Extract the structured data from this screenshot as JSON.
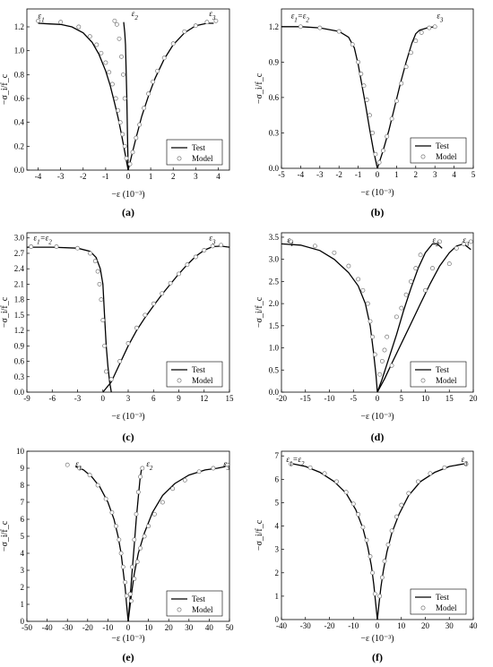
{
  "figure": {
    "legend_test": "Test",
    "legend_model": "Model",
    "ylabel": "−σ_i/f_c",
    "xlabel": "−ε (10⁻³)"
  },
  "chart_data": [
    {
      "type": "line",
      "panel_label": "(a)",
      "xlim": [
        -4.5,
        4.5
      ],
      "ylim": [
        0,
        1.35
      ],
      "xticks": [
        -4,
        -3,
        -2,
        -1,
        0,
        1,
        2,
        3,
        4
      ],
      "yticks": [
        0.0,
        0.2,
        0.4,
        0.6,
        0.8,
        1.0,
        1.2
      ],
      "ytick_decimals": 1,
      "legend_position": "lower-right",
      "annotations": [
        {
          "text": "ε1",
          "x": -4.0,
          "y": 1.27
        },
        {
          "text": "ε2",
          "x": 0.15,
          "y": 1.29
        },
        {
          "text": "ε3",
          "x": 3.6,
          "y": 1.29
        }
      ],
      "series": [
        {
          "name": "Test",
          "style": "line",
          "x": [
            -4.0,
            -3.5,
            -3.0,
            -2.5,
            -2.0,
            -1.6,
            -1.3,
            -1.0,
            -0.8,
            -0.6,
            -0.45,
            -0.3,
            -0.2,
            -0.1,
            0.0
          ],
          "y": [
            1.23,
            1.225,
            1.22,
            1.2,
            1.15,
            1.07,
            0.97,
            0.83,
            0.71,
            0.56,
            0.44,
            0.3,
            0.2,
            0.1,
            0.0
          ]
        },
        {
          "name": "Test",
          "style": "line",
          "x": [
            0.0,
            -0.03,
            -0.06,
            -0.1,
            -0.12,
            -0.15,
            -0.2
          ],
          "y": [
            0.0,
            0.3,
            0.6,
            0.9,
            1.05,
            1.15,
            1.24
          ]
        },
        {
          "name": "Test",
          "style": "line",
          "x": [
            0.0,
            0.15,
            0.35,
            0.6,
            0.9,
            1.2,
            1.6,
            2.0,
            2.5,
            3.0,
            3.5,
            3.8
          ],
          "y": [
            0.0,
            0.12,
            0.27,
            0.45,
            0.62,
            0.77,
            0.93,
            1.05,
            1.15,
            1.21,
            1.23,
            1.23
          ]
        },
        {
          "name": "Model",
          "style": "marker",
          "x": [
            -4.0,
            -3.0,
            -2.2,
            -1.7,
            -1.4,
            -1.2,
            -1.0,
            -0.85,
            -0.7,
            -0.55,
            -0.45,
            -0.35,
            -0.25,
            -0.15,
            -0.08,
            -0.6,
            -0.5,
            -0.4,
            -0.3,
            -0.22,
            -0.15,
            0.08,
            0.2,
            0.35,
            0.5,
            0.7,
            0.9,
            1.1,
            1.3,
            1.6,
            2.0,
            2.5,
            3.0,
            3.5,
            3.9
          ],
          "y": [
            1.25,
            1.24,
            1.2,
            1.12,
            1.05,
            0.98,
            0.9,
            0.82,
            0.72,
            0.6,
            0.5,
            0.4,
            0.3,
            0.2,
            0.1,
            1.25,
            1.22,
            1.1,
            0.95,
            0.8,
            0.6,
            0.05,
            0.15,
            0.27,
            0.38,
            0.52,
            0.64,
            0.74,
            0.83,
            0.94,
            1.06,
            1.16,
            1.21,
            1.24,
            1.25
          ]
        }
      ]
    },
    {
      "type": "line",
      "panel_label": "(b)",
      "xlim": [
        -5,
        5
      ],
      "ylim": [
        0,
        1.35
      ],
      "xticks": [
        -5,
        -4,
        -3,
        -2,
        -1,
        0,
        1,
        2,
        3,
        4,
        5
      ],
      "yticks": [
        0.0,
        0.3,
        0.6,
        0.9,
        1.2
      ],
      "ytick_decimals": 1,
      "legend_position": "lower-right",
      "annotations": [
        {
          "text": "ε1=ε2",
          "x": -4.5,
          "y": 1.27
        },
        {
          "text": "ε3",
          "x": 3.1,
          "y": 1.27
        }
      ],
      "series": [
        {
          "name": "Test",
          "style": "line",
          "x": [
            -5.0,
            -4.0,
            -3.0,
            -2.0,
            -1.5,
            -1.2,
            -1.0,
            -0.8,
            -0.6,
            -0.4,
            -0.2,
            0.0
          ],
          "y": [
            1.2,
            1.2,
            1.19,
            1.16,
            1.11,
            1.02,
            0.88,
            0.7,
            0.52,
            0.33,
            0.15,
            0.0
          ]
        },
        {
          "name": "Test",
          "style": "line",
          "x": [
            0.0,
            0.3,
            0.6,
            0.9,
            1.2,
            1.5,
            1.8,
            2.0,
            2.2,
            2.6,
            3.0
          ],
          "y": [
            0.0,
            0.15,
            0.32,
            0.52,
            0.72,
            0.9,
            1.06,
            1.14,
            1.17,
            1.19,
            1.2
          ]
        },
        {
          "name": "Model",
          "style": "marker",
          "x": [
            -4.0,
            -3.0,
            -2.0,
            -1.3,
            -1.0,
            -0.85,
            -0.7,
            -0.55,
            -0.4,
            -0.25,
            -0.1,
            0.1,
            0.3,
            0.5,
            0.75,
            1.0,
            1.25,
            1.5,
            1.75,
            2.0,
            2.3,
            2.7,
            3.0
          ],
          "y": [
            1.2,
            1.19,
            1.16,
            1.05,
            0.9,
            0.8,
            0.7,
            0.58,
            0.45,
            0.3,
            0.12,
            0.05,
            0.15,
            0.27,
            0.42,
            0.57,
            0.72,
            0.86,
            0.98,
            1.08,
            1.15,
            1.19,
            1.2
          ]
        }
      ]
    },
    {
      "type": "line",
      "panel_label": "(c)",
      "xlim": [
        -9,
        15
      ],
      "ylim": [
        0,
        3.1
      ],
      "xticks": [
        -9,
        -6,
        -3,
        0,
        3,
        6,
        9,
        12,
        15
      ],
      "yticks": [
        0.0,
        0.3,
        0.6,
        0.9,
        1.2,
        1.5,
        1.8,
        2.1,
        2.4,
        2.7,
        3.0
      ],
      "ytick_decimals": 1,
      "legend_position": "lower-right",
      "annotations": [
        {
          "text": "ε1=ε2",
          "x": -8.2,
          "y": 2.95
        },
        {
          "text": "ε3",
          "x": 12.6,
          "y": 2.95
        }
      ],
      "series": [
        {
          "name": "Test",
          "style": "line",
          "x": [
            -9.0,
            -6.0,
            -3.0,
            -1.5,
            -0.8,
            -0.3,
            0.0,
            0.2,
            0.4,
            0.6,
            0.8,
            1.0
          ],
          "y": [
            2.82,
            2.82,
            2.8,
            2.74,
            2.62,
            2.4,
            2.1,
            1.5,
            0.9,
            0.5,
            0.2,
            0.0
          ]
        },
        {
          "name": "Test",
          "style": "line",
          "x": [
            0.0,
            1.0,
            2.0,
            3.0,
            4.0,
            5.0,
            6.0,
            7.0,
            8.0,
            9.0,
            10.0,
            11.0,
            12.0,
            13.0,
            14.0,
            15.0
          ],
          "y": [
            0.0,
            0.2,
            0.55,
            0.9,
            1.2,
            1.45,
            1.68,
            1.9,
            2.1,
            2.3,
            2.48,
            2.64,
            2.76,
            2.83,
            2.84,
            2.82
          ]
        },
        {
          "name": "Model",
          "style": "marker",
          "x": [
            -8.5,
            -5.5,
            -3.0,
            -1.5,
            -0.9,
            -0.6,
            -0.4,
            -0.2,
            0.0,
            0.2,
            0.4,
            1.0,
            2.0,
            3.0,
            4.0,
            5.0,
            6.0,
            7.0,
            8.0,
            9.0,
            10.0,
            11.0,
            12.0,
            13.0,
            14.0
          ],
          "y": [
            2.83,
            2.83,
            2.8,
            2.7,
            2.55,
            2.35,
            2.1,
            1.8,
            1.4,
            0.9,
            0.4,
            0.25,
            0.6,
            0.95,
            1.25,
            1.5,
            1.72,
            1.92,
            2.12,
            2.3,
            2.48,
            2.63,
            2.76,
            2.84,
            2.86
          ]
        }
      ]
    },
    {
      "type": "line",
      "panel_label": "(d)",
      "xlim": [
        -20,
        20
      ],
      "ylim": [
        0,
        3.6
      ],
      "xticks": [
        -20,
        -15,
        -10,
        -5,
        0,
        5,
        10,
        15,
        20
      ],
      "yticks": [
        0.0,
        0.5,
        1.0,
        1.5,
        2.0,
        2.5,
        3.0,
        3.5
      ],
      "ytick_decimals": 1,
      "legend_position": "lower-right",
      "annotations": [
        {
          "text": "ε1",
          "x": -18.8,
          "y": 3.38
        },
        {
          "text": "ε2",
          "x": 11.5,
          "y": 3.38
        },
        {
          "text": "ε3",
          "x": 17.8,
          "y": 3.38
        }
      ],
      "series": [
        {
          "name": "Test",
          "style": "line",
          "x": [
            -20.0,
            -16.0,
            -12.0,
            -9.0,
            -6.0,
            -4.0,
            -2.5,
            -1.5,
            -0.8,
            -0.3,
            0.0
          ],
          "y": [
            3.35,
            3.32,
            3.2,
            3.0,
            2.7,
            2.4,
            2.0,
            1.5,
            0.9,
            0.4,
            0.0
          ]
        },
        {
          "name": "Test",
          "style": "line",
          "x": [
            0.0,
            1.0,
            2.5,
            4.0,
            5.5,
            7.0,
            8.5,
            10.0,
            11.5,
            12.5,
            13.5
          ],
          "y": [
            0.0,
            0.3,
            0.8,
            1.3,
            1.85,
            2.35,
            2.8,
            3.15,
            3.35,
            3.35,
            3.25
          ]
        },
        {
          "name": "Test",
          "style": "line",
          "x": [
            0.0,
            1.5,
            3.0,
            5.0,
            7.0,
            9.0,
            11.0,
            13.0,
            15.0,
            16.5,
            18.0,
            19.5
          ],
          "y": [
            0.0,
            0.3,
            0.65,
            1.1,
            1.55,
            2.0,
            2.45,
            2.85,
            3.15,
            3.3,
            3.35,
            3.22
          ]
        },
        {
          "name": "Model",
          "style": "marker",
          "x": [
            -18.0,
            -13.0,
            -9.0,
            -6.0,
            -4.0,
            -3.0,
            -2.0,
            -1.5,
            -1.0,
            -0.5,
            0.5,
            1.0,
            1.5,
            2.0,
            3.0,
            4.0,
            5.0,
            6.0,
            7.0,
            8.0,
            9.0,
            10.0,
            11.5,
            13.0,
            15.0,
            16.5,
            18.0,
            19.5
          ],
          "y": [
            3.4,
            3.3,
            3.15,
            2.85,
            2.55,
            2.3,
            2.0,
            1.6,
            1.25,
            0.85,
            0.4,
            0.7,
            0.95,
            1.25,
            0.6,
            1.7,
            1.9,
            2.2,
            2.5,
            2.8,
            3.1,
            2.3,
            2.8,
            3.4,
            2.9,
            3.25,
            3.35,
            3.4
          ]
        }
      ]
    },
    {
      "type": "line",
      "panel_label": "(e)",
      "xlim": [
        -50,
        50
      ],
      "ylim": [
        0,
        10
      ],
      "xticks": [
        -50,
        -40,
        -30,
        -20,
        -10,
        0,
        10,
        20,
        30,
        40,
        50
      ],
      "yticks": [
        0,
        1,
        2,
        3,
        4,
        5,
        6,
        7,
        8,
        9,
        10
      ],
      "ytick_decimals": 0,
      "legend_position": "lower-right",
      "annotations": [
        {
          "text": "ε1",
          "x": -26.0,
          "y": 9.1
        },
        {
          "text": "ε2",
          "x": 9.0,
          "y": 9.1
        },
        {
          "text": "ε3",
          "x": 47.0,
          "y": 9.1
        }
      ],
      "series": [
        {
          "name": "Test",
          "style": "line",
          "x": [
            -26.0,
            -22.0,
            -18.0,
            -14.0,
            -10.0,
            -7.0,
            -5.0,
            -3.5,
            -2.5,
            -1.5,
            -0.8,
            0.0
          ],
          "y": [
            9.1,
            8.9,
            8.5,
            7.9,
            7.0,
            6.0,
            5.0,
            4.0,
            3.0,
            2.0,
            1.0,
            0.0
          ]
        },
        {
          "name": "Test",
          "style": "line",
          "x": [
            0.0,
            1.0,
            2.0,
            3.0,
            4.0,
            5.0,
            5.8,
            6.5,
            7.0
          ],
          "y": [
            0.0,
            1.5,
            3.0,
            4.5,
            6.0,
            7.3,
            8.3,
            8.9,
            9.1
          ]
        },
        {
          "name": "Test",
          "style": "line",
          "x": [
            0.0,
            1.5,
            3.0,
            5.0,
            8.0,
            12.0,
            17.0,
            23.0,
            30.0,
            38.0,
            44.0,
            48.0
          ],
          "y": [
            0.0,
            1.5,
            2.8,
            4.0,
            5.2,
            6.4,
            7.4,
            8.1,
            8.6,
            8.9,
            9.0,
            9.1
          ]
        },
        {
          "name": "Model",
          "style": "marker",
          "x": [
            -30.0,
            -24.0,
            -19.0,
            -15.0,
            -11.0,
            -8.0,
            -6.0,
            -4.5,
            -3.5,
            -2.5,
            -1.5,
            -0.8,
            1.0,
            2.0,
            3.0,
            4.0,
            5.0,
            6.0,
            7.0,
            1.5,
            3.0,
            4.5,
            6.0,
            8.0,
            10.0,
            13.0,
            17.0,
            22.0,
            28.0,
            35.0,
            42.0,
            49.0
          ],
          "y": [
            9.2,
            9.0,
            8.6,
            8.0,
            7.2,
            6.4,
            5.6,
            4.8,
            4.0,
            3.2,
            2.3,
            1.5,
            1.6,
            3.2,
            4.8,
            6.3,
            7.6,
            8.5,
            9.0,
            1.2,
            2.5,
            3.5,
            4.3,
            5.0,
            5.6,
            6.3,
            7.0,
            7.8,
            8.3,
            8.8,
            9.0,
            9.2
          ]
        }
      ]
    },
    {
      "type": "line",
      "panel_label": "(f)",
      "xlim": [
        -40,
        40
      ],
      "ylim": [
        0,
        7.2
      ],
      "xticks": [
        -40,
        -30,
        -20,
        -10,
        0,
        10,
        20,
        30,
        40
      ],
      "yticks": [
        0,
        1,
        2,
        3,
        4,
        5,
        6,
        7
      ],
      "ytick_decimals": 0,
      "legend_position": "lower-right",
      "annotations": [
        {
          "text": "ε1=ε2",
          "x": -38.0,
          "y": 6.75
        },
        {
          "text": "ε3",
          "x": 35.0,
          "y": 6.75
        }
      ],
      "series": [
        {
          "name": "Test",
          "style": "line",
          "x": [
            -36.0,
            -30.0,
            -24.0,
            -18.0,
            -13.0,
            -9.0,
            -6.0,
            -4.0,
            -2.5,
            -1.5,
            -0.7,
            0.0
          ],
          "y": [
            6.68,
            6.55,
            6.3,
            5.9,
            5.4,
            4.7,
            3.9,
            3.1,
            2.3,
            1.5,
            0.7,
            0.0
          ]
        },
        {
          "name": "Test",
          "style": "line",
          "x": [
            0.0,
            0.7,
            1.5,
            2.5,
            4.0,
            6.0,
            9.0,
            13.0,
            18.0,
            24.0,
            30.0,
            37.0
          ],
          "y": [
            0.0,
            0.7,
            1.4,
            2.1,
            2.9,
            3.7,
            4.5,
            5.3,
            5.9,
            6.3,
            6.55,
            6.68
          ]
        },
        {
          "name": "Model",
          "style": "marker",
          "x": [
            -36.0,
            -28.0,
            -22.0,
            -17.0,
            -13.0,
            -10.0,
            -8.0,
            -6.0,
            -4.5,
            -3.0,
            -2.0,
            -1.0,
            1.0,
            2.0,
            3.0,
            4.5,
            6.0,
            8.0,
            10.0,
            13.0,
            17.0,
            22.0,
            28.0,
            37.0
          ],
          "y": [
            6.65,
            6.5,
            6.25,
            5.9,
            5.45,
            4.95,
            4.5,
            3.95,
            3.4,
            2.7,
            2.0,
            1.1,
            1.0,
            1.8,
            2.5,
            3.2,
            3.8,
            4.4,
            4.9,
            5.4,
            5.9,
            6.25,
            6.5,
            6.65
          ]
        }
      ]
    }
  ]
}
